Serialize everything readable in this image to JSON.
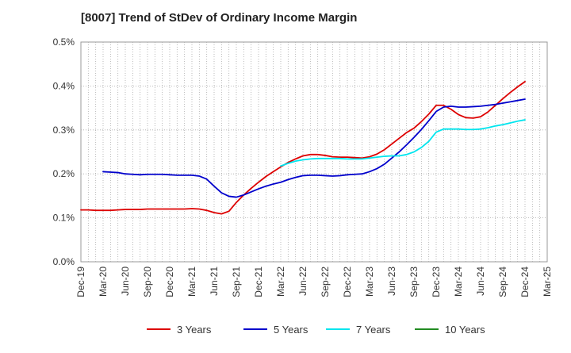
{
  "chart_data": {
    "type": "line",
    "title": "[8007]  Trend of StDev of Ordinary Income Margin",
    "xlabel": "",
    "ylabel": "",
    "y_ticks": [
      "0.0%",
      "0.1%",
      "0.2%",
      "0.3%",
      "0.4%",
      "0.5%"
    ],
    "ylim": [
      0,
      0.5
    ],
    "x_ticks": [
      "Dec-19",
      "Mar-20",
      "Jun-20",
      "Sep-20",
      "Dec-20",
      "Mar-21",
      "Jun-21",
      "Sep-21",
      "Dec-21",
      "Mar-22",
      "Jun-22",
      "Sep-22",
      "Dec-22",
      "Mar-23",
      "Jun-23",
      "Sep-23",
      "Dec-23",
      "Mar-24",
      "Jun-24",
      "Sep-24",
      "Dec-24",
      "Mar-25"
    ],
    "grid": true,
    "legend_position": "bottom",
    "series": [
      {
        "name": "3 Years",
        "color": "#dd0000",
        "points": [
          [
            "Dec-19",
            0.118
          ],
          [
            "Jan-20",
            0.118
          ],
          [
            "Feb-20",
            0.117
          ],
          [
            "Mar-20",
            0.117
          ],
          [
            "Apr-20",
            0.117
          ],
          [
            "May-20",
            0.118
          ],
          [
            "Jun-20",
            0.119
          ],
          [
            "Jul-20",
            0.119
          ],
          [
            "Aug-20",
            0.119
          ],
          [
            "Sep-20",
            0.12
          ],
          [
            "Oct-20",
            0.12
          ],
          [
            "Nov-20",
            0.12
          ],
          [
            "Dec-20",
            0.12
          ],
          [
            "Jan-21",
            0.12
          ],
          [
            "Feb-21",
            0.12
          ],
          [
            "Mar-21",
            0.121
          ],
          [
            "Apr-21",
            0.12
          ],
          [
            "May-21",
            0.117
          ],
          [
            "Jun-21",
            0.112
          ],
          [
            "Jul-21",
            0.109
          ],
          [
            "Aug-21",
            0.115
          ],
          [
            "Sep-21",
            0.135
          ],
          [
            "Oct-21",
            0.152
          ],
          [
            "Nov-21",
            0.167
          ],
          [
            "Dec-21",
            0.181
          ],
          [
            "Jan-22",
            0.194
          ],
          [
            "Feb-22",
            0.205
          ],
          [
            "Mar-22",
            0.216
          ],
          [
            "Apr-22",
            0.226
          ],
          [
            "May-22",
            0.234
          ],
          [
            "Jun-22",
            0.241
          ],
          [
            "Jul-22",
            0.244
          ],
          [
            "Aug-22",
            0.244
          ],
          [
            "Sep-22",
            0.242
          ],
          [
            "Oct-22",
            0.239
          ],
          [
            "Nov-22",
            0.238
          ],
          [
            "Dec-22",
            0.238
          ],
          [
            "Jan-23",
            0.237
          ],
          [
            "Feb-23",
            0.236
          ],
          [
            "Mar-23",
            0.239
          ],
          [
            "Apr-23",
            0.245
          ],
          [
            "May-23",
            0.255
          ],
          [
            "Jun-23",
            0.268
          ],
          [
            "Jul-23",
            0.281
          ],
          [
            "Aug-23",
            0.294
          ],
          [
            "Sep-23",
            0.304
          ],
          [
            "Oct-23",
            0.319
          ],
          [
            "Nov-23",
            0.336
          ],
          [
            "Dec-23",
            0.356
          ],
          [
            "Jan-24",
            0.356
          ],
          [
            "Feb-24",
            0.347
          ],
          [
            "Mar-24",
            0.335
          ],
          [
            "Apr-24",
            0.328
          ],
          [
            "May-24",
            0.327
          ],
          [
            "Jun-24",
            0.33
          ],
          [
            "Jul-24",
            0.341
          ],
          [
            "Aug-24",
            0.356
          ],
          [
            "Sep-24",
            0.371
          ],
          [
            "Oct-24",
            0.385
          ],
          [
            "Nov-24",
            0.398
          ],
          [
            "Dec-24",
            0.41
          ]
        ]
      },
      {
        "name": "5 Years",
        "color": "#0000cc",
        "points": [
          [
            "Dec-19",
            null
          ],
          [
            "Jan-20",
            null
          ],
          [
            "Feb-20",
            null
          ],
          [
            "Mar-20",
            0.205
          ],
          [
            "Apr-20",
            0.204
          ],
          [
            "May-20",
            0.203
          ],
          [
            "Jun-20",
            0.2
          ],
          [
            "Jul-20",
            0.199
          ],
          [
            "Aug-20",
            0.198
          ],
          [
            "Sep-20",
            0.199
          ],
          [
            "Oct-20",
            0.199
          ],
          [
            "Nov-20",
            0.199
          ],
          [
            "Dec-20",
            0.198
          ],
          [
            "Jan-21",
            0.197
          ],
          [
            "Feb-21",
            0.197
          ],
          [
            "Mar-21",
            0.197
          ],
          [
            "Apr-21",
            0.195
          ],
          [
            "May-21",
            0.188
          ],
          [
            "Jun-21",
            0.172
          ],
          [
            "Jul-21",
            0.157
          ],
          [
            "Aug-21",
            0.149
          ],
          [
            "Sep-21",
            0.147
          ],
          [
            "Oct-21",
            0.152
          ],
          [
            "Nov-21",
            0.159
          ],
          [
            "Dec-21",
            0.166
          ],
          [
            "Jan-22",
            0.172
          ],
          [
            "Feb-22",
            0.177
          ],
          [
            "Mar-22",
            0.181
          ],
          [
            "Apr-22",
            0.187
          ],
          [
            "May-22",
            0.192
          ],
          [
            "Jun-22",
            0.196
          ],
          [
            "Jul-22",
            0.197
          ],
          [
            "Aug-22",
            0.197
          ],
          [
            "Sep-22",
            0.196
          ],
          [
            "Oct-22",
            0.195
          ],
          [
            "Nov-22",
            0.196
          ],
          [
            "Dec-22",
            0.198
          ],
          [
            "Jan-23",
            0.199
          ],
          [
            "Feb-23",
            0.2
          ],
          [
            "Mar-23",
            0.205
          ],
          [
            "Apr-23",
            0.212
          ],
          [
            "May-23",
            0.222
          ],
          [
            "Jun-23",
            0.236
          ],
          [
            "Jul-23",
            0.25
          ],
          [
            "Aug-23",
            0.266
          ],
          [
            "Sep-23",
            0.283
          ],
          [
            "Oct-23",
            0.301
          ],
          [
            "Nov-23",
            0.321
          ],
          [
            "Dec-23",
            0.342
          ],
          [
            "Jan-24",
            0.352
          ],
          [
            "Feb-24",
            0.354
          ],
          [
            "Mar-24",
            0.352
          ],
          [
            "Apr-24",
            0.352
          ],
          [
            "May-24",
            0.353
          ],
          [
            "Jun-24",
            0.354
          ],
          [
            "Jul-24",
            0.356
          ],
          [
            "Aug-24",
            0.358
          ],
          [
            "Sep-24",
            0.361
          ],
          [
            "Oct-24",
            0.364
          ],
          [
            "Nov-24",
            0.367
          ],
          [
            "Dec-24",
            0.37
          ]
        ]
      },
      {
        "name": "7 Years",
        "color": "#00e5ee",
        "points": [
          [
            "Mar-22",
            0.218
          ],
          [
            "Apr-22",
            0.224
          ],
          [
            "May-22",
            0.229
          ],
          [
            "Jun-22",
            0.232
          ],
          [
            "Jul-22",
            0.234
          ],
          [
            "Aug-22",
            0.235
          ],
          [
            "Sep-22",
            0.235
          ],
          [
            "Oct-22",
            0.235
          ],
          [
            "Nov-22",
            0.235
          ],
          [
            "Dec-22",
            0.234
          ],
          [
            "Jan-23",
            0.234
          ],
          [
            "Feb-23",
            0.234
          ],
          [
            "Mar-23",
            0.236
          ],
          [
            "Apr-23",
            0.238
          ],
          [
            "May-23",
            0.24
          ],
          [
            "Jun-23",
            0.241
          ],
          [
            "Jul-23",
            0.241
          ],
          [
            "Aug-23",
            0.244
          ],
          [
            "Sep-23",
            0.25
          ],
          [
            "Oct-23",
            0.26
          ],
          [
            "Nov-23",
            0.274
          ],
          [
            "Dec-23",
            0.295
          ],
          [
            "Jan-24",
            0.302
          ],
          [
            "Feb-24",
            0.302
          ],
          [
            "Mar-24",
            0.302
          ],
          [
            "Apr-24",
            0.301
          ],
          [
            "May-24",
            0.301
          ],
          [
            "Jun-24",
            0.302
          ],
          [
            "Jul-24",
            0.305
          ],
          [
            "Aug-24",
            0.309
          ],
          [
            "Sep-24",
            0.312
          ],
          [
            "Oct-24",
            0.316
          ],
          [
            "Nov-24",
            0.32
          ],
          [
            "Dec-24",
            0.323
          ]
        ]
      },
      {
        "name": "10 Years",
        "color": "#228b22",
        "points": []
      }
    ]
  }
}
